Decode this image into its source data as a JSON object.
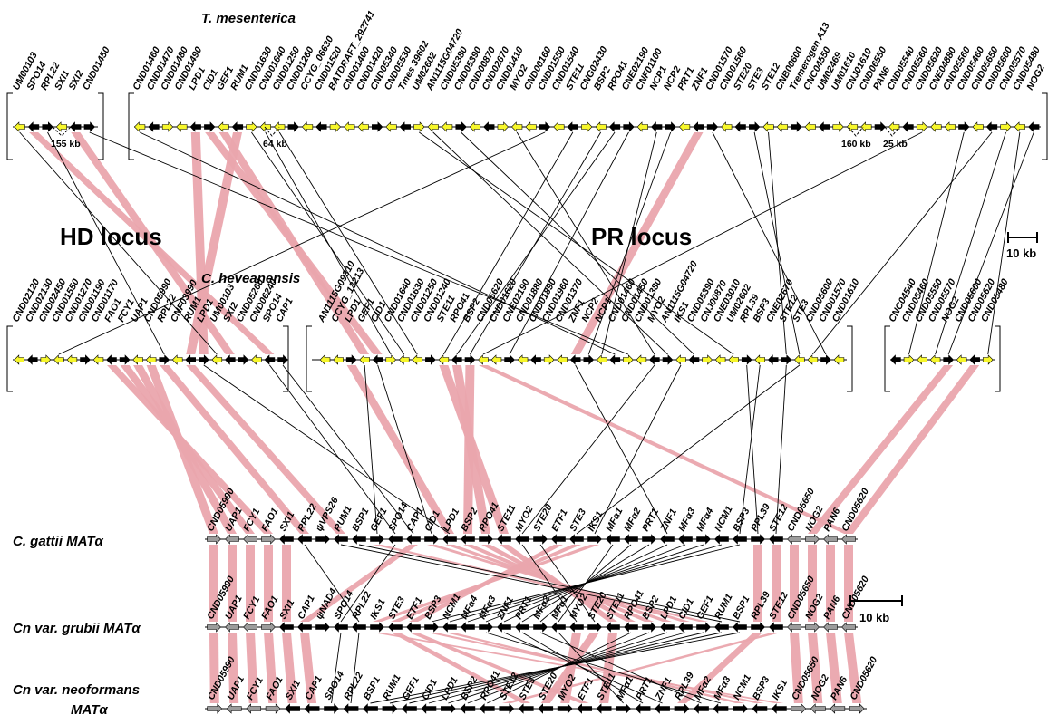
{
  "colors": {
    "ribbon": "#eaa5ad",
    "black_gene": "#000000",
    "yellow_gene": "#f7f72a",
    "grey_gene": "#9c9c9c",
    "line": "#000000"
  },
  "labels": {
    "tmes": "T. mesenterica",
    "chev": "C. heveanensis",
    "hd_locus": "HD locus",
    "pr_locus": "PR locus",
    "scale_top": "10 kb",
    "scale_bottom": "10 kb",
    "gattii_1": "C. gattii MAT",
    "gattii_alpha": "α",
    "grubii_1": "Cn var. grubii MAT",
    "grubii_alpha": "α",
    "neo_1": "Cn var. neoformans",
    "neo_2": "MAT",
    "neo_alpha": "α",
    "gap_155": "155 kb",
    "gap_64": "64 kb",
    "gap_160": "160 kb",
    "gap_25": "25 kb"
  },
  "tmes_genes": [
    "UM00103",
    "SPO14",
    "RPL22",
    "SXI1",
    "SXI2",
    "CND01450",
    "CND01460",
    "CND01470",
    "CND01480",
    "CND01490",
    "LPD1",
    "CID1",
    "GEF1",
    "RUM1",
    "CND01630",
    "CND01640",
    "CND01250",
    "CND01260",
    "CCYG_06630",
    "CND01520",
    "BATDRAFT_292741",
    "CND01400",
    "CND01420",
    "CND05340",
    "CND05530",
    "Tmes 39602",
    "UM02602",
    "AN1115G04720",
    "CND05380",
    "CND05390",
    "CND00870",
    "CND02670",
    "CND01410",
    "MYO2",
    "CND00160",
    "CND01550",
    "CND01540",
    "STE11",
    "CNG02430",
    "BSP2",
    "RPO41",
    "CNE02190",
    "CNF01100",
    "NCP1",
    "NCP2",
    "PRT1",
    "ZNF1",
    "CND01570",
    "CND01560",
    "STE20",
    "STE3",
    "STE12",
    "CNB00600",
    "Tremerogen A13",
    "CNC04550",
    "UM02469",
    "UM01610",
    "CNJ01610",
    "CND06550",
    "PAN6",
    "CND05540",
    "CND05560",
    "CND05620",
    "CNE04880",
    "CND05560",
    "CND05460",
    "CND05650",
    "CND05600",
    "CND05570",
    "CND05480",
    "NOG2"
  ],
  "chev_genes": [
    "CND02120",
    "CND02130",
    "CND02450",
    "CND01550",
    "CND01270",
    "CND01190",
    "CND01170",
    "FAO1",
    "FCY1",
    "UAP1",
    "CND05990",
    "RPL22",
    "CNF03990",
    "RUM1",
    "LPD1",
    "UM00103",
    "SXI2",
    "CND05260",
    "CND06240",
    "SPO14",
    "CAP1",
    "AN1115G09310",
    "CCYG_13213",
    "LPD1",
    "GEF1",
    "CID1",
    "CND01640",
    "CND01630",
    "CND01250",
    "CND01240",
    "STE11",
    "RPO41",
    "BSP2",
    "CND05620",
    "CND01620",
    "CNE02190",
    "CND01880",
    "CND01890",
    "CND01960",
    "CND01370",
    "ZNF1",
    "NCP2",
    "NCP1",
    "CND01460",
    "CND01450",
    "CND01380",
    "MYO2",
    "AN1115G04720",
    "IKS1",
    "CND05390",
    "CNJ00870",
    "CNE03010",
    "UM02602",
    "RPL39",
    "BSP3",
    "CNE02670",
    "STE12",
    "STE3",
    "CND05600",
    "CND01570",
    "CND01610",
    "CNC04540",
    "CND05460",
    "CND05550",
    "CND05570",
    "NOG2",
    "CND05600",
    "CND05620",
    "CND05480"
  ],
  "gattii_genes": [
    "CND05990",
    "UAP1",
    "FCY1",
    "FAO1",
    "SXI1",
    "RPL22",
    "ψVPS26",
    "RUM1",
    "BSP1",
    "GEF1",
    "SPO14",
    "CAP1",
    "CID1",
    "LPD1",
    "BSP2",
    "RPO41",
    "STE11",
    "MYO2",
    "STE20",
    "ETF1",
    "STE3",
    "IKS1",
    "MFα1",
    "MFα2",
    "PRT1",
    "ZNF1",
    "MFα3",
    "MFα4",
    "NCM1",
    "BSP3",
    "RPL39",
    "STE12",
    "CND05650",
    "NOG2",
    "PAN6",
    "CND05620"
  ],
  "grubii_genes": [
    "CND05990",
    "UAP1",
    "FCY1",
    "FAO1",
    "SXI1",
    "CAP1",
    "ψNAD4",
    "SPO14",
    "RPL22",
    "IKS1",
    "STE3",
    "ETF1",
    "BSP3",
    "NCM1",
    "MFα4",
    "MFα3",
    "ZNF1",
    "PRT1",
    "MFα2",
    "MFα1",
    "MYO2",
    "STE20",
    "STE11",
    "RPO41",
    "BSP2",
    "LPD1",
    "CID1",
    "GEF1",
    "RUM1",
    "BSP1",
    "RPL39",
    "STE12",
    "CND05650",
    "NOG2",
    "PAN6",
    "CND05620"
  ],
  "neo_genes": [
    "CND05990",
    "UAP1",
    "FCY1",
    "FAO1",
    "SXI1",
    "CAP1",
    "SPO14",
    "RPL22",
    "BSP1",
    "RUM1",
    "GEF1",
    "CID1",
    "LPD1",
    "BSP2",
    "RPO41",
    "STE12",
    "STE3",
    "STE20",
    "MYO2",
    "ETF1",
    "STE11",
    "MFα1",
    "PRT1",
    "ZNF1",
    "RPL39",
    "MFα2",
    "MFα3",
    "NCM1",
    "BSP3",
    "IKS1",
    "CND05650",
    "NOG2",
    "PAN6",
    "CND05620"
  ]
}
